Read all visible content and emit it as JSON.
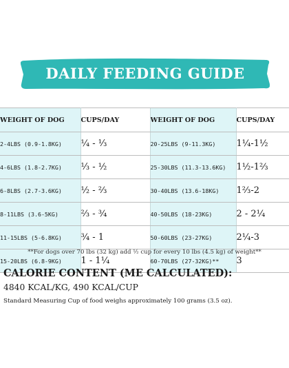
{
  "banner": {
    "title": "DAILY FEEDING GUIDE",
    "color": "#2fb8b5"
  },
  "table": {
    "headers": [
      "WEIGHT OF DOG",
      "CUPS/DAY",
      "WEIGHT OF DOG",
      "CUPS/DAY"
    ],
    "rows": [
      [
        "2-4LBS (0.9-1.8KG)",
        "¼ - ⅓",
        "20-25LBS (9-11.3KG)",
        "1¼-1½"
      ],
      [
        "4-6LBS (1.8-2.7KG)",
        "⅓ - ½",
        "25-30LBS (11.3-13.6KG)",
        "1½-1⅔"
      ],
      [
        "6-8LBS (2.7-3.6KG)",
        "½ - ⅔",
        "30-40LBS (13.6-18KG)",
        "1⅔-2"
      ],
      [
        "8-11LBS (3.6-5KG)",
        "⅔ - ¾",
        "40-50LBS (18-23KG)",
        "2 - 2¼"
      ],
      [
        "11-15LBS (5-6.8KG)",
        "¾ - 1",
        "50-60LBS (23-27KG)",
        "2¼-3"
      ],
      [
        "15-20LBS (6.8-9KG)",
        "1 - 1¼",
        "60-70LBS (27-32KG)**",
        "3"
      ]
    ],
    "weight_bg": "#def5f7"
  },
  "note": "**For dogs over 70 lbs (32 kg) add ½ cup for every 10 lbs (4.5 kg) of weight**",
  "calorie": {
    "title": "CALORIE CONTENT (ME CALCULATED):",
    "values": "4840 KCAL/KG, 490 KCAL/CUP",
    "description": "Standard Measuring Cup of food weighs approximately 100 grams (3.5 oz)."
  }
}
